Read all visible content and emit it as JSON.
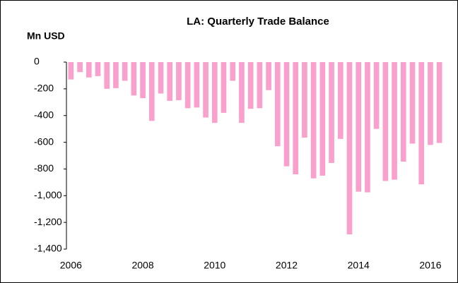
{
  "chart_data": {
    "type": "bar",
    "title": "LA: Quarterly Trade Balance",
    "y_label": "Mn USD",
    "categories": [
      "2006",
      null,
      null,
      null,
      null,
      null,
      null,
      null,
      "2008",
      null,
      null,
      null,
      null,
      null,
      null,
      null,
      "2010",
      null,
      null,
      null,
      null,
      null,
      null,
      null,
      "2012",
      null,
      null,
      null,
      null,
      null,
      null,
      null,
      "2014",
      null,
      null,
      null,
      null,
      null,
      null,
      null,
      "2016",
      null
    ],
    "values": [
      -130,
      -75,
      -115,
      -105,
      -200,
      -195,
      -140,
      -250,
      -270,
      -440,
      -235,
      -290,
      -285,
      -345,
      -340,
      -415,
      -455,
      -380,
      -140,
      -455,
      -350,
      -345,
      -210,
      -630,
      -780,
      -840,
      -565,
      -870,
      -850,
      -755,
      -575,
      -1290,
      -970,
      -975,
      -500,
      -890,
      -880,
      -745,
      -610,
      -915,
      -620,
      -605
    ],
    "color": "#f9a0cc",
    "ylim": [
      -1400,
      0
    ],
    "yticks": [
      {
        "value": -1400,
        "label": "-1,400"
      },
      {
        "value": -1200,
        "label": "-1,200"
      },
      {
        "value": -1000,
        "label": "-1,000"
      },
      -800,
      -600,
      -400,
      -200,
      0
    ],
    "grid": false
  }
}
